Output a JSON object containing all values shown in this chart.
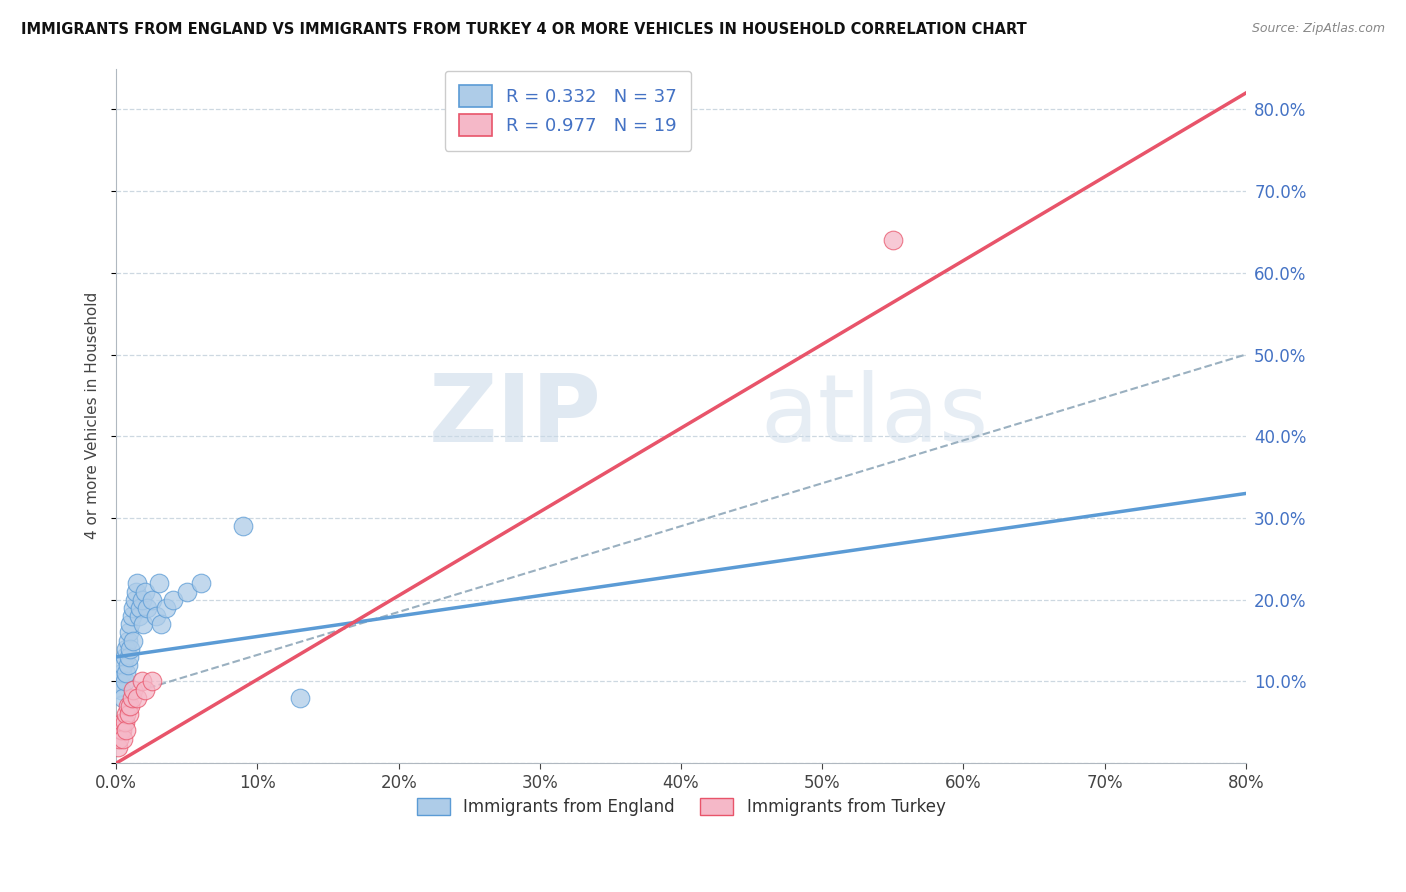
{
  "title": "IMMIGRANTS FROM ENGLAND VS IMMIGRANTS FROM TURKEY 4 OR MORE VEHICLES IN HOUSEHOLD CORRELATION CHART",
  "source": "Source: ZipAtlas.com",
  "ylabel": "4 or more Vehicles in Household",
  "xlim": [
    0,
    0.8
  ],
  "ylim": [
    0,
    0.85
  ],
  "x_ticks": [
    0.0,
    0.1,
    0.2,
    0.3,
    0.4,
    0.5,
    0.6,
    0.7,
    0.8
  ],
  "y_ticks": [
    0.0,
    0.1,
    0.2,
    0.3,
    0.4,
    0.5,
    0.6,
    0.7,
    0.8
  ],
  "england_R": 0.332,
  "england_N": 37,
  "turkey_R": 0.977,
  "turkey_N": 19,
  "england_color": "#aecce8",
  "turkey_color": "#f5b8c8",
  "england_line_color": "#5b9bd5",
  "turkey_line_color": "#e8546a",
  "trend_line_color": "#9ab0c0",
  "watermark_zip": "ZIP",
  "watermark_atlas": "atlas",
  "england_x": [
    0.002,
    0.003,
    0.004,
    0.005,
    0.005,
    0.006,
    0.006,
    0.007,
    0.007,
    0.008,
    0.008,
    0.009,
    0.009,
    0.01,
    0.01,
    0.011,
    0.012,
    0.012,
    0.013,
    0.014,
    0.015,
    0.016,
    0.017,
    0.018,
    0.019,
    0.02,
    0.022,
    0.025,
    0.028,
    0.03,
    0.032,
    0.035,
    0.04,
    0.05,
    0.06,
    0.09,
    0.13
  ],
  "england_y": [
    0.1,
    0.09,
    0.11,
    0.12,
    0.08,
    0.13,
    0.1,
    0.14,
    0.11,
    0.15,
    0.12,
    0.16,
    0.13,
    0.17,
    0.14,
    0.18,
    0.19,
    0.15,
    0.2,
    0.21,
    0.22,
    0.18,
    0.19,
    0.2,
    0.17,
    0.21,
    0.19,
    0.2,
    0.18,
    0.22,
    0.17,
    0.19,
    0.2,
    0.21,
    0.22,
    0.29,
    0.08
  ],
  "turkey_x": [
    0.001,
    0.002,
    0.003,
    0.004,
    0.005,
    0.005,
    0.006,
    0.007,
    0.007,
    0.008,
    0.009,
    0.01,
    0.011,
    0.012,
    0.015,
    0.018,
    0.02,
    0.025,
    0.55
  ],
  "turkey_y": [
    0.02,
    0.03,
    0.04,
    0.04,
    0.05,
    0.03,
    0.05,
    0.06,
    0.04,
    0.07,
    0.06,
    0.07,
    0.08,
    0.09,
    0.08,
    0.1,
    0.09,
    0.1,
    0.64
  ],
  "england_line_x0": 0.0,
  "england_line_y0": 0.13,
  "england_line_x1": 0.8,
  "england_line_y1": 0.33,
  "turkey_line_x0": 0.0,
  "turkey_line_y0": 0.0,
  "turkey_line_x1": 0.8,
  "turkey_line_y1": 0.82,
  "dash_line_x0": 0.0,
  "dash_line_y0": 0.08,
  "dash_line_x1": 0.8,
  "dash_line_y1": 0.5
}
